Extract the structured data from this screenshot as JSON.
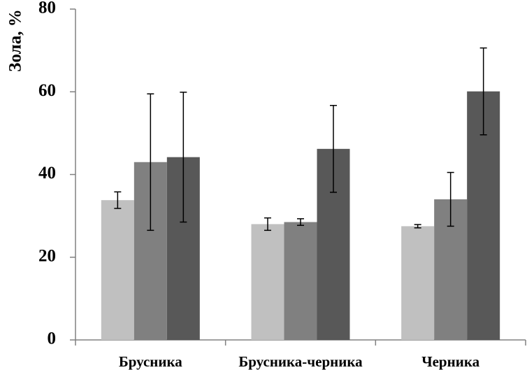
{
  "chart_data": {
    "type": "bar",
    "title": "",
    "xlabel": "",
    "ylabel": "Зола, %",
    "ylim": [
      0,
      80
    ],
    "yticks": [
      0,
      20,
      40,
      60,
      80
    ],
    "grid": false,
    "legend": "none",
    "categories": [
      "Брусника",
      "Брусника-черника",
      "Черника"
    ],
    "series": [
      {
        "name": "series-1",
        "color": "#c0c0c0",
        "values": [
          33.8,
          28.0,
          27.5
        ],
        "errors": [
          2.0,
          1.5,
          0.4
        ]
      },
      {
        "name": "series-2",
        "color": "#808080",
        "values": [
          43.0,
          28.5,
          34.0
        ],
        "errors": [
          16.5,
          0.8,
          6.5
        ]
      },
      {
        "name": "series-3",
        "color": "#585858",
        "values": [
          44.2,
          46.2,
          60.1
        ],
        "errors": [
          15.7,
          10.5,
          10.5
        ]
      }
    ]
  }
}
